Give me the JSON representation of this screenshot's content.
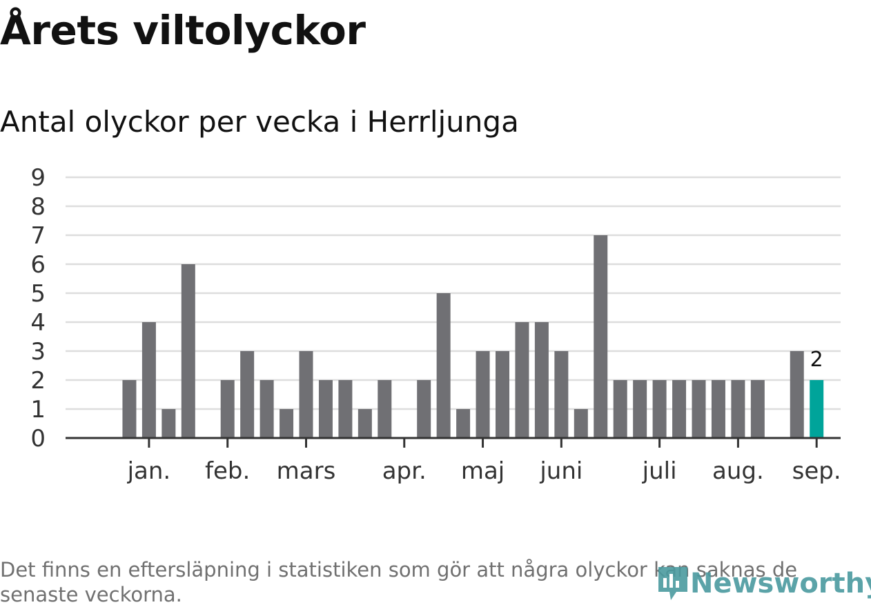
{
  "header": {
    "title": "Årets viltolyckor",
    "subtitle": "Antal olyckor per vecka i Herrljunga"
  },
  "note": "Det finns en eftersläpning i statistiken som gör att några olyckor kan saknas de senaste veckorna.",
  "logo": {
    "text": "Newsworthy"
  },
  "chart_data": {
    "type": "bar",
    "title": "Årets viltolyckor",
    "subtitle": "Antal olyckor per vecka i Herrljunga",
    "xlabel": "",
    "ylabel": "",
    "ylim": [
      0,
      9
    ],
    "yticks": [
      0,
      1,
      2,
      3,
      4,
      5,
      6,
      7,
      8,
      9
    ],
    "grid": true,
    "weeks": [
      1,
      2,
      3,
      4,
      5,
      6,
      7,
      8,
      9,
      10,
      11,
      12,
      13,
      14,
      15,
      16,
      17,
      18,
      19,
      20,
      21,
      22,
      23,
      24,
      25,
      26,
      27,
      28,
      29,
      30,
      31,
      32,
      33,
      34,
      35,
      36,
      37,
      38
    ],
    "values": [
      0,
      2,
      4,
      1,
      6,
      0,
      2,
      3,
      2,
      1,
      3,
      2,
      2,
      1,
      2,
      0,
      2,
      5,
      1,
      3,
      3,
      4,
      4,
      3,
      1,
      7,
      2,
      2,
      2,
      2,
      2,
      2,
      2,
      2,
      0,
      3,
      2,
      0
    ],
    "month_ticks": [
      {
        "label": "jan.",
        "week": 3
      },
      {
        "label": "feb.",
        "week": 7
      },
      {
        "label": "mars",
        "week": 11
      },
      {
        "label": "apr.",
        "week": 16
      },
      {
        "label": "maj",
        "week": 20
      },
      {
        "label": "juni",
        "week": 24
      },
      {
        "label": "juli",
        "week": 29
      },
      {
        "label": "aug.",
        "week": 33
      },
      {
        "label": "sep.",
        "week": 37
      }
    ],
    "highlight_week": 37,
    "highlight_label": "2",
    "colors": {
      "bar": "#707074",
      "highlight": "#00a49a",
      "grid": "#dddddd",
      "axis": "#333333"
    }
  }
}
